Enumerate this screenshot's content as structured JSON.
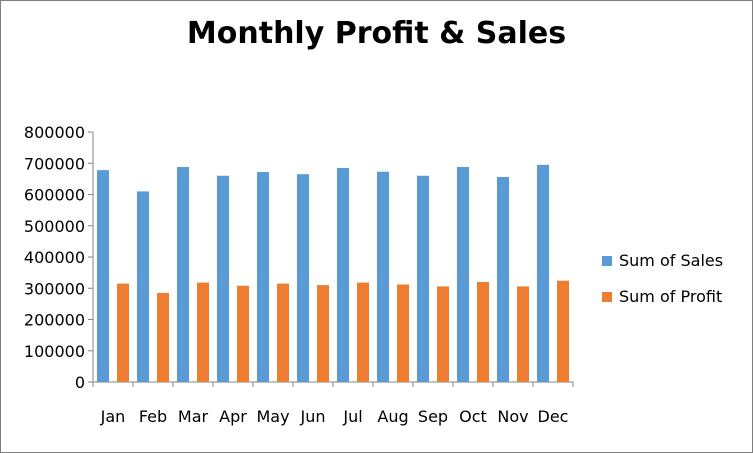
{
  "chart_data": {
    "type": "bar",
    "title": "Monthly Profit & Sales",
    "categories": [
      "Jan",
      "Feb",
      "Mar",
      "Apr",
      "May",
      "Jun",
      "Jul",
      "Aug",
      "Sep",
      "Oct",
      "Nov",
      "Dec"
    ],
    "series": [
      {
        "name": "Sum of Sales",
        "color": "#5b9bd5",
        "values": [
          678000,
          610000,
          688000,
          660000,
          672000,
          665000,
          685000,
          673000,
          660000,
          688000,
          656000,
          695000
        ]
      },
      {
        "name": "Sum of Profit",
        "color": "#ed7d31",
        "values": [
          315000,
          285000,
          318000,
          308000,
          315000,
          310000,
          318000,
          312000,
          306000,
          320000,
          306000,
          324000
        ]
      }
    ],
    "ylim": [
      0,
      800000
    ],
    "yticks": [
      0,
      100000,
      200000,
      300000,
      400000,
      500000,
      600000,
      700000,
      800000
    ],
    "grid": false,
    "legend": "right"
  }
}
